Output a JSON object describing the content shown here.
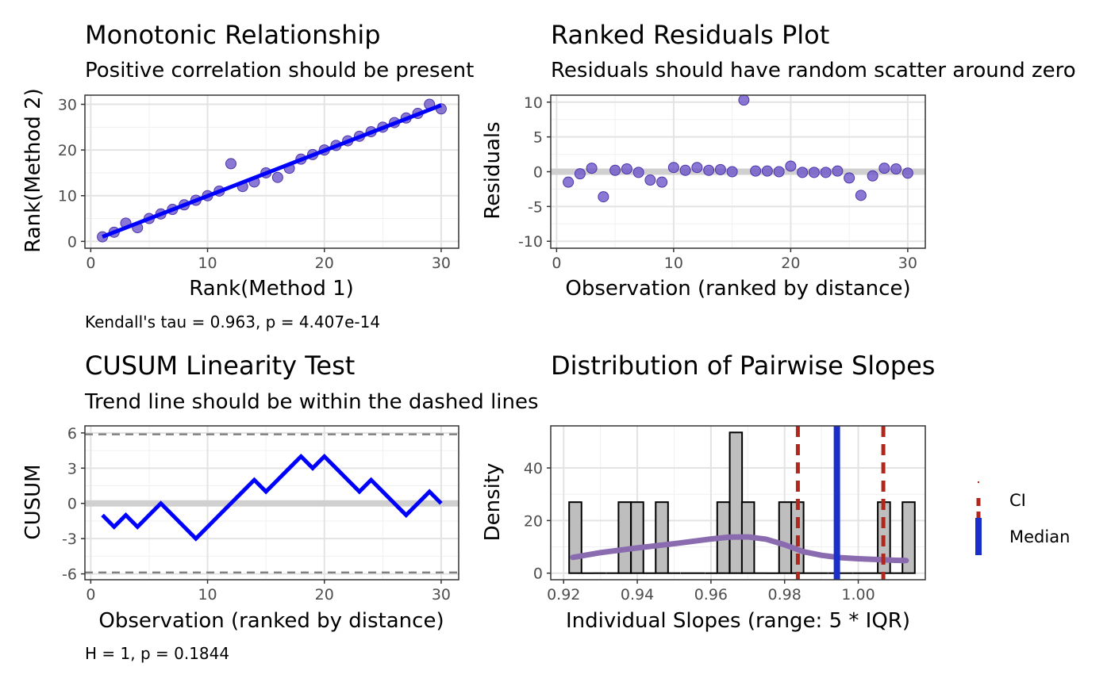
{
  "chart_data": [
    {
      "id": "p1",
      "type": "scatter",
      "title": "Monotonic Relationship",
      "subtitle": "Positive correlation should be present",
      "xlabel": "Rank(Method 1)",
      "ylabel": "Rank(Method 2)",
      "caption": "Kendall's tau = 0.963, p = 4.407e-14",
      "xlim": [
        -0.5,
        31.5
      ],
      "ylim": [
        -1.5,
        32
      ],
      "x_ticks": [
        0,
        10,
        20,
        30
      ],
      "y_ticks": [
        0,
        10,
        20,
        30
      ],
      "grid": true,
      "points": {
        "x": [
          1,
          2,
          3,
          4,
          5,
          6,
          7,
          8,
          9,
          10,
          11,
          12,
          13,
          14,
          15,
          16,
          17,
          18,
          19,
          20,
          21,
          22,
          23,
          24,
          25,
          26,
          27,
          28,
          29,
          30
        ],
        "y": [
          1,
          2,
          4,
          3,
          5,
          6,
          7,
          8,
          9,
          10,
          11,
          17,
          12,
          13,
          15,
          14,
          16,
          18,
          19,
          20,
          21,
          22,
          23,
          24,
          25,
          26,
          27,
          28,
          30,
          29
        ]
      },
      "fit_line": {
        "x": [
          1,
          30
        ],
        "y": [
          1,
          29.8
        ]
      },
      "colors": {
        "points": "#6a51c8",
        "fit": "#0000ff"
      }
    },
    {
      "id": "p2",
      "type": "scatter",
      "title": "Ranked Residuals Plot",
      "subtitle": "Residuals should have random scatter around zero",
      "xlabel": "Observation (ranked by distance)",
      "ylabel": "Residuals",
      "xlim": [
        -0.5,
        31.5
      ],
      "ylim": [
        -11,
        11
      ],
      "x_ticks": [
        0,
        10,
        20,
        30
      ],
      "y_ticks": [
        -10,
        -5,
        0,
        5,
        10
      ],
      "grid": true,
      "reference_line": 0,
      "points": {
        "x": [
          1,
          2,
          3,
          4,
          5,
          6,
          7,
          8,
          9,
          10,
          11,
          12,
          13,
          14,
          15,
          16,
          17,
          18,
          19,
          20,
          21,
          22,
          23,
          24,
          25,
          26,
          27,
          28,
          29,
          30
        ],
        "y": [
          -1.5,
          -0.3,
          0.5,
          -3.6,
          0.2,
          0.4,
          -0.1,
          -1.2,
          -1.5,
          0.6,
          0.2,
          0.6,
          0.2,
          0.3,
          0.0,
          10.3,
          0.1,
          0.1,
          0.0,
          0.8,
          -0.1,
          -0.1,
          -0.1,
          0.1,
          -0.9,
          -3.4,
          -0.6,
          0.5,
          0.4,
          -0.2
        ]
      },
      "colors": {
        "points": "#6a51c8",
        "reference": "#d0d0d0"
      }
    },
    {
      "id": "p3",
      "type": "line",
      "title": "CUSUM Linearity Test",
      "subtitle": "Trend line should be within the dashed lines",
      "xlabel": "Observation (ranked by distance)",
      "ylabel": "CUSUM",
      "caption": "H = 1, p = 0.1844",
      "xlim": [
        -0.5,
        31.5
      ],
      "ylim": [
        -6.5,
        6.6
      ],
      "x_ticks": [
        0,
        10,
        20,
        30
      ],
      "y_ticks": [
        -6,
        -3,
        0,
        3,
        6
      ],
      "grid": true,
      "reference_line": 0,
      "bounds": [
        5.88,
        -5.88
      ],
      "line": {
        "x": [
          1,
          2,
          3,
          4,
          5,
          6,
          7,
          8,
          9,
          10,
          11,
          12,
          13,
          14,
          15,
          16,
          17,
          18,
          19,
          20,
          21,
          22,
          23,
          24,
          25,
          26,
          27,
          28,
          29,
          30
        ],
        "y": [
          -1,
          -2,
          -1,
          -2,
          -1,
          0,
          -1,
          -2,
          -3,
          -2,
          -1,
          0,
          1,
          2,
          1,
          2,
          3,
          4,
          3,
          4,
          3,
          2,
          1,
          2,
          1,
          0,
          -1,
          0,
          1,
          0
        ]
      },
      "colors": {
        "line": "#0000ff",
        "bounds": "#808080",
        "reference": "#d0d0d0"
      }
    },
    {
      "id": "p4",
      "type": "bar",
      "title": "Distribution of Pairwise Slopes",
      "subtitle": "",
      "xlabel": "Individual Slopes (range: 5 * IQR)",
      "ylabel": "Density",
      "xlim": [
        0.9165,
        1.0182
      ],
      "ylim": [
        -2.5,
        56
      ],
      "x_ticks": [
        0.92,
        0.94,
        0.96,
        0.98,
        1.0
      ],
      "x_tick_labels": [
        "0.92",
        "0.94",
        "0.96",
        "0.98",
        "1.00"
      ],
      "y_ticks": [
        0,
        20,
        40
      ],
      "grid": true,
      "histogram": {
        "bin_width": 0.00335,
        "bin_starts": [
          0.9215,
          0.9249,
          0.9282,
          0.9316,
          0.9349,
          0.9383,
          0.9416,
          0.945,
          0.9483,
          0.9517,
          0.955,
          0.9584,
          0.9617,
          0.9651,
          0.9684,
          0.9718,
          0.9751,
          0.9785,
          0.9818,
          0.9852,
          0.9885,
          0.9919,
          0.9952,
          0.9986,
          1.0019,
          1.0053,
          1.0086,
          1.012
        ],
        "values": [
          27,
          0,
          0,
          0,
          27,
          27,
          0,
          27,
          0,
          0,
          0,
          0,
          27,
          53.5,
          27,
          0,
          0,
          27,
          27,
          0,
          0,
          0,
          0,
          0,
          0,
          27,
          0,
          27
        ]
      },
      "density": {
        "x": [
          0.9225,
          0.93,
          0.94,
          0.95,
          0.96,
          0.965,
          0.97,
          0.975,
          0.98,
          0.985,
          0.99,
          0.995,
          1.0,
          1.005,
          1.01,
          1.013
        ],
        "y": [
          6,
          7.8,
          9.6,
          11.2,
          13,
          13.7,
          13.8,
          12.9,
          10.8,
          8.2,
          6.8,
          5.9,
          5.5,
          5.2,
          4.9,
          4.8
        ]
      },
      "vlines": [
        {
          "name": "CI",
          "x": 0.9836,
          "style": "dashed",
          "color": "#b2261c"
        },
        {
          "name": "Median",
          "x": 0.9942,
          "style": "solid",
          "color": "#1a2ec9"
        },
        {
          "name": "CI",
          "x": 1.0068,
          "style": "dashed",
          "color": "#b2261c"
        }
      ],
      "legend": {
        "placement": "right",
        "entries": [
          "CI",
          "Median"
        ]
      },
      "colors": {
        "bars": "#bebebe",
        "bar_outline": "#000000",
        "density": "#8a6bb0"
      }
    }
  ]
}
